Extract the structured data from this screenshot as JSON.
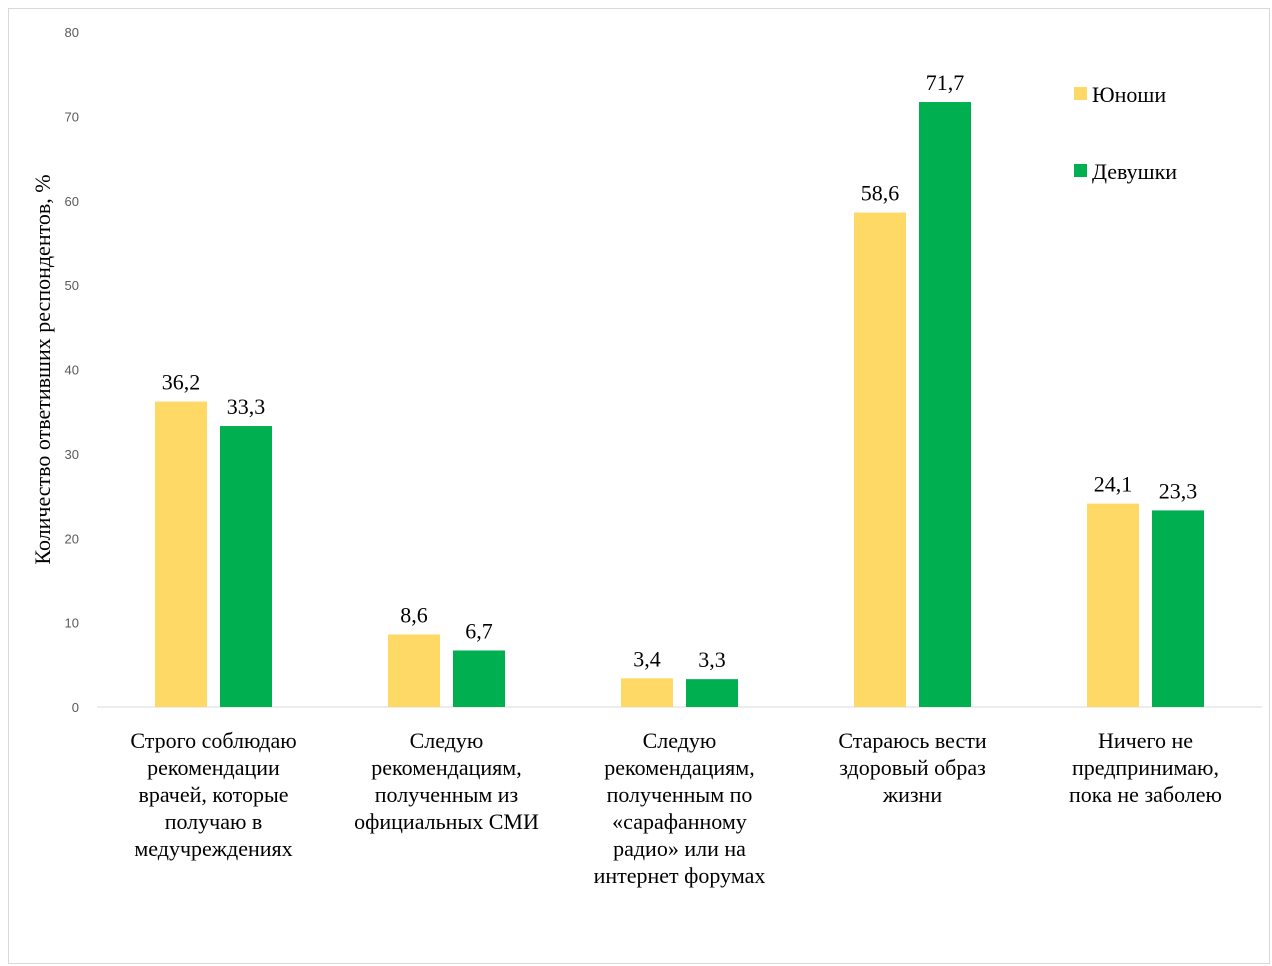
{
  "chart_data": {
    "type": "bar",
    "ylabel": "Количество ответивших респондентов, %",
    "ylim": [
      0,
      80
    ],
    "yticks": [
      0,
      10,
      20,
      30,
      40,
      50,
      60,
      70,
      80
    ],
    "grid": false,
    "legend_position": "top-right",
    "categories": [
      [
        "Строго соблюдаю",
        "рекомендации",
        "врачей, которые",
        "получаю в",
        "медучреждениях"
      ],
      [
        "Следую",
        "рекомендациям,",
        "полученным из",
        "официальных СМИ"
      ],
      [
        "Следую",
        "рекомендациям,",
        "полученным по",
        "«сарафанному",
        "радио» или на",
        "интернет форумах"
      ],
      [
        "Стараюсь вести",
        "здоровый образ",
        "жизни"
      ],
      [
        "Ничего не",
        "предпринимаю,",
        "пока не заболею"
      ]
    ],
    "series": [
      {
        "name": "Юноши",
        "color": "#ffd966",
        "values": [
          36.2,
          8.6,
          3.4,
          58.6,
          24.1
        ],
        "labels": [
          "36,2",
          "8,6",
          "3,4",
          "58,6",
          "24,1"
        ]
      },
      {
        "name": "Девушки",
        "color": "#00b050",
        "values": [
          33.3,
          6.7,
          3.3,
          71.7,
          23.3
        ],
        "labels": [
          "33,3",
          "6,7",
          "3,3",
          "71,7",
          "23,3"
        ]
      }
    ]
  }
}
